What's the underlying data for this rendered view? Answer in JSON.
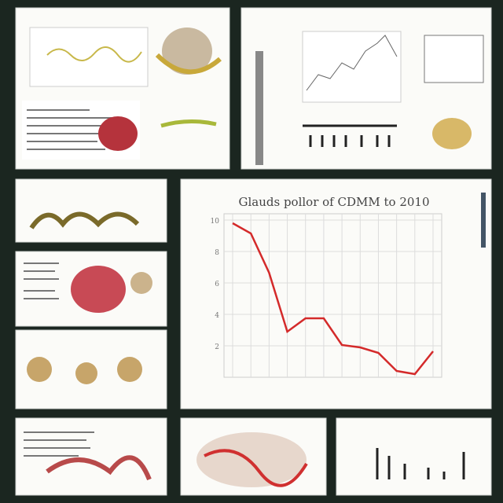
{
  "chart_data": {
    "type": "line",
    "title": "Glauds pollor of CDMM to 2010",
    "values": [
      9.8,
      9.15,
      6.65,
      2.9,
      3.75,
      3.75,
      2.05,
      1.9,
      1.55,
      0.4,
      0.2,
      1.65
    ],
    "color": "#d42a2a",
    "ylim": [
      0,
      10
    ],
    "yticks": [
      2,
      4,
      6,
      8,
      10
    ],
    "grid": true
  }
}
